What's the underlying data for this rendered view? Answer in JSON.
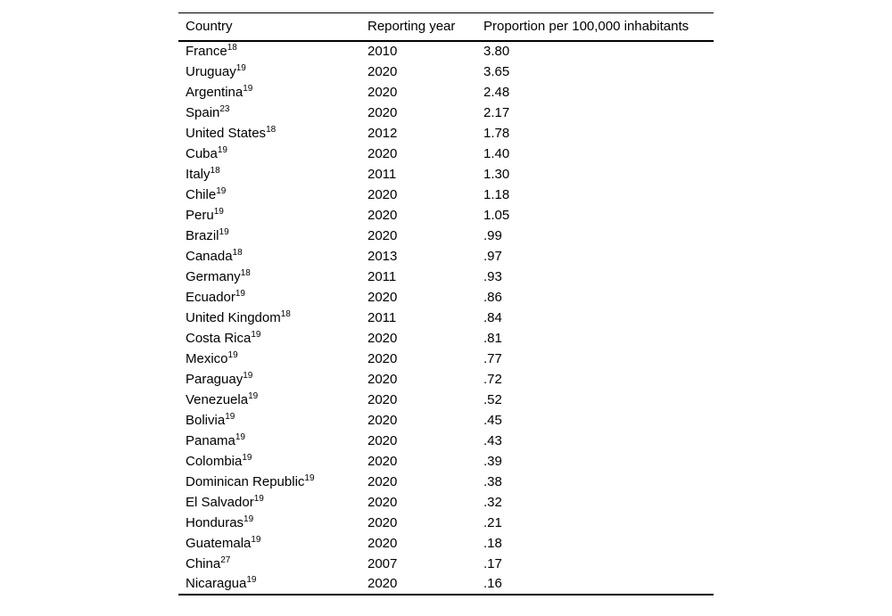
{
  "colors": {
    "background": "#ffffff",
    "text": "#000000",
    "rule": "#000000"
  },
  "table": {
    "columns": [
      "Country",
      "Reporting year",
      "Proportion per 100,000 inhabitants"
    ],
    "rows": [
      {
        "country": "France",
        "ref": "18",
        "year": "2010",
        "value": "3.80"
      },
      {
        "country": "Uruguay",
        "ref": "19",
        "year": "2020",
        "value": "3.65"
      },
      {
        "country": "Argentina",
        "ref": "19",
        "year": "2020",
        "value": "2.48"
      },
      {
        "country": "Spain",
        "ref": "23",
        "year": "2020",
        "value": "2.17"
      },
      {
        "country": "United States",
        "ref": "18",
        "year": "2012",
        "value": "1.78"
      },
      {
        "country": "Cuba",
        "ref": "19",
        "year": "2020",
        "value": "1.40"
      },
      {
        "country": "Italy",
        "ref": "18",
        "year": "2011",
        "value": "1.30"
      },
      {
        "country": "Chile",
        "ref": "19",
        "year": "2020",
        "value": "1.18"
      },
      {
        "country": "Peru",
        "ref": "19",
        "year": "2020",
        "value": "1.05"
      },
      {
        "country": "Brazil",
        "ref": "19",
        "year": "2020",
        "value": ".99"
      },
      {
        "country": "Canada",
        "ref": "18",
        "year": "2013",
        "value": ".97"
      },
      {
        "country": "Germany",
        "ref": "18",
        "year": "2011",
        "value": ".93"
      },
      {
        "country": "Ecuador",
        "ref": "19",
        "year": "2020",
        "value": ".86"
      },
      {
        "country": "United Kingdom",
        "ref": "18",
        "year": "2011",
        "value": ".84"
      },
      {
        "country": "Costa Rica",
        "ref": "19",
        "year": "2020",
        "value": ".81"
      },
      {
        "country": "Mexico",
        "ref": "19",
        "year": "2020",
        "value": ".77"
      },
      {
        "country": "Paraguay",
        "ref": "19",
        "year": "2020",
        "value": ".72"
      },
      {
        "country": "Venezuela",
        "ref": "19",
        "year": "2020",
        "value": ".52"
      },
      {
        "country": "Bolivia",
        "ref": "19",
        "year": "2020",
        "value": ".45"
      },
      {
        "country": "Panama",
        "ref": "19",
        "year": "2020",
        "value": ".43"
      },
      {
        "country": "Colombia",
        "ref": "19",
        "year": "2020",
        "value": ".39"
      },
      {
        "country": "Dominican Republic",
        "ref": "19",
        "year": "2020",
        "value": ".38"
      },
      {
        "country": "El Salvador",
        "ref": "19",
        "year": "2020",
        "value": ".32"
      },
      {
        "country": "Honduras",
        "ref": "19",
        "year": "2020",
        "value": ".21"
      },
      {
        "country": "Guatemala",
        "ref": "19",
        "year": "2020",
        "value": ".18"
      },
      {
        "country": "China",
        "ref": "27",
        "year": "2007",
        "value": ".17"
      },
      {
        "country": "Nicaragua",
        "ref": "19",
        "year": "2020",
        "value": ".16"
      }
    ]
  }
}
